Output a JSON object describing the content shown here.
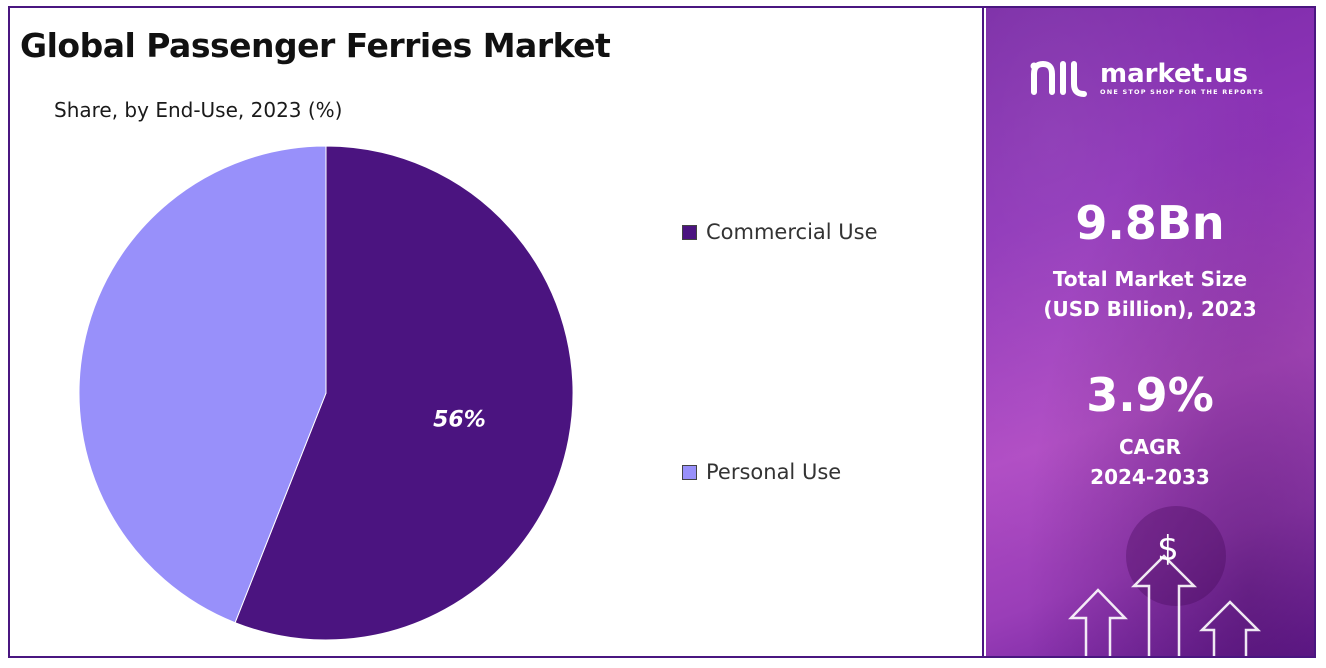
{
  "title": "Global Passenger Ferries Market",
  "chart_data": {
    "type": "pie",
    "subtitle": "Share, by End-Use, 2023 (%)",
    "slices": [
      {
        "name": "Commercial Use",
        "value": 56,
        "label": "56%",
        "color": "#4b1480"
      },
      {
        "name": "Personal Use",
        "value": 44,
        "label": "",
        "color": "#9890fa"
      }
    ],
    "legend_position": "right"
  },
  "sidebar": {
    "logo": {
      "name": "market.us",
      "tagline": "ONE STOP SHOP FOR THE REPORTS",
      "icon": "market-us-logo-icon"
    },
    "market_size": {
      "value": "9.8Bn",
      "label_line1": "Total Market Size",
      "label_line2": "(USD Billion), 2023"
    },
    "cagr": {
      "value": "3.9%",
      "label_line1": "CAGR",
      "label_line2": "2024-2033"
    },
    "decoration": {
      "symbol": "$"
    }
  },
  "colors": {
    "accent": "#4a1680",
    "panel": "#8e34b8"
  }
}
